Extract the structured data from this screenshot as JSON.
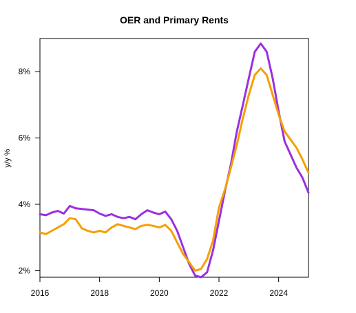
{
  "chart_data": {
    "type": "line",
    "title": "OER and Primary Rents",
    "xlabel": "",
    "ylabel": "y/y %",
    "xlim": [
      2016,
      2025
    ],
    "ylim": [
      1.8,
      9.0
    ],
    "x_ticks": [
      2016,
      2018,
      2020,
      2022,
      2024
    ],
    "x_tick_labels": [
      "2016",
      "2018",
      "2020",
      "2022",
      "2024"
    ],
    "y_ticks": [
      2,
      4,
      6,
      8
    ],
    "y_tick_labels": [
      "2%",
      "4%",
      "6%",
      "8%"
    ],
    "grid": false,
    "legend": "none",
    "series": [
      {
        "color": "#9b30e0",
        "points": [
          [
            2016.0,
            3.7
          ],
          [
            2016.2,
            3.67
          ],
          [
            2016.4,
            3.75
          ],
          [
            2016.6,
            3.8
          ],
          [
            2016.8,
            3.72
          ],
          [
            2017.0,
            3.95
          ],
          [
            2017.2,
            3.88
          ],
          [
            2017.4,
            3.86
          ],
          [
            2017.6,
            3.84
          ],
          [
            2017.8,
            3.82
          ],
          [
            2018.0,
            3.72
          ],
          [
            2018.2,
            3.65
          ],
          [
            2018.4,
            3.7
          ],
          [
            2018.6,
            3.62
          ],
          [
            2018.8,
            3.58
          ],
          [
            2019.0,
            3.62
          ],
          [
            2019.2,
            3.55
          ],
          [
            2019.4,
            3.7
          ],
          [
            2019.6,
            3.82
          ],
          [
            2019.8,
            3.75
          ],
          [
            2020.0,
            3.7
          ],
          [
            2020.2,
            3.78
          ],
          [
            2020.4,
            3.55
          ],
          [
            2020.6,
            3.2
          ],
          [
            2020.8,
            2.7
          ],
          [
            2021.0,
            2.2
          ],
          [
            2021.2,
            1.85
          ],
          [
            2021.4,
            1.8
          ],
          [
            2021.6,
            1.95
          ],
          [
            2021.8,
            2.6
          ],
          [
            2022.0,
            3.5
          ],
          [
            2022.2,
            4.4
          ],
          [
            2022.4,
            5.2
          ],
          [
            2022.6,
            6.2
          ],
          [
            2022.8,
            7.0
          ],
          [
            2023.0,
            7.8
          ],
          [
            2023.2,
            8.6
          ],
          [
            2023.4,
            8.85
          ],
          [
            2023.6,
            8.6
          ],
          [
            2023.8,
            7.8
          ],
          [
            2024.0,
            6.8
          ],
          [
            2024.2,
            5.9
          ],
          [
            2024.4,
            5.5
          ],
          [
            2024.6,
            5.1
          ],
          [
            2024.8,
            4.8
          ],
          [
            2025.0,
            4.35
          ]
        ]
      },
      {
        "color": "#f5a000",
        "points": [
          [
            2016.0,
            3.15
          ],
          [
            2016.2,
            3.1
          ],
          [
            2016.4,
            3.2
          ],
          [
            2016.6,
            3.3
          ],
          [
            2016.8,
            3.4
          ],
          [
            2017.0,
            3.58
          ],
          [
            2017.2,
            3.55
          ],
          [
            2017.4,
            3.28
          ],
          [
            2017.6,
            3.2
          ],
          [
            2017.8,
            3.15
          ],
          [
            2018.0,
            3.2
          ],
          [
            2018.2,
            3.15
          ],
          [
            2018.4,
            3.3
          ],
          [
            2018.6,
            3.4
          ],
          [
            2018.8,
            3.35
          ],
          [
            2019.0,
            3.3
          ],
          [
            2019.2,
            3.25
          ],
          [
            2019.4,
            3.35
          ],
          [
            2019.6,
            3.38
          ],
          [
            2019.8,
            3.35
          ],
          [
            2020.0,
            3.3
          ],
          [
            2020.2,
            3.38
          ],
          [
            2020.4,
            3.2
          ],
          [
            2020.6,
            2.85
          ],
          [
            2020.8,
            2.5
          ],
          [
            2021.0,
            2.25
          ],
          [
            2021.2,
            2.0
          ],
          [
            2021.4,
            2.05
          ],
          [
            2021.6,
            2.35
          ],
          [
            2021.8,
            2.9
          ],
          [
            2022.0,
            3.9
          ],
          [
            2022.2,
            4.45
          ],
          [
            2022.4,
            5.1
          ],
          [
            2022.6,
            5.8
          ],
          [
            2022.8,
            6.6
          ],
          [
            2023.0,
            7.3
          ],
          [
            2023.2,
            7.9
          ],
          [
            2023.4,
            8.1
          ],
          [
            2023.6,
            7.9
          ],
          [
            2023.8,
            7.3
          ],
          [
            2024.0,
            6.7
          ],
          [
            2024.2,
            6.2
          ],
          [
            2024.4,
            5.95
          ],
          [
            2024.6,
            5.7
          ],
          [
            2024.8,
            5.35
          ],
          [
            2025.0,
            4.95
          ]
        ]
      }
    ]
  }
}
